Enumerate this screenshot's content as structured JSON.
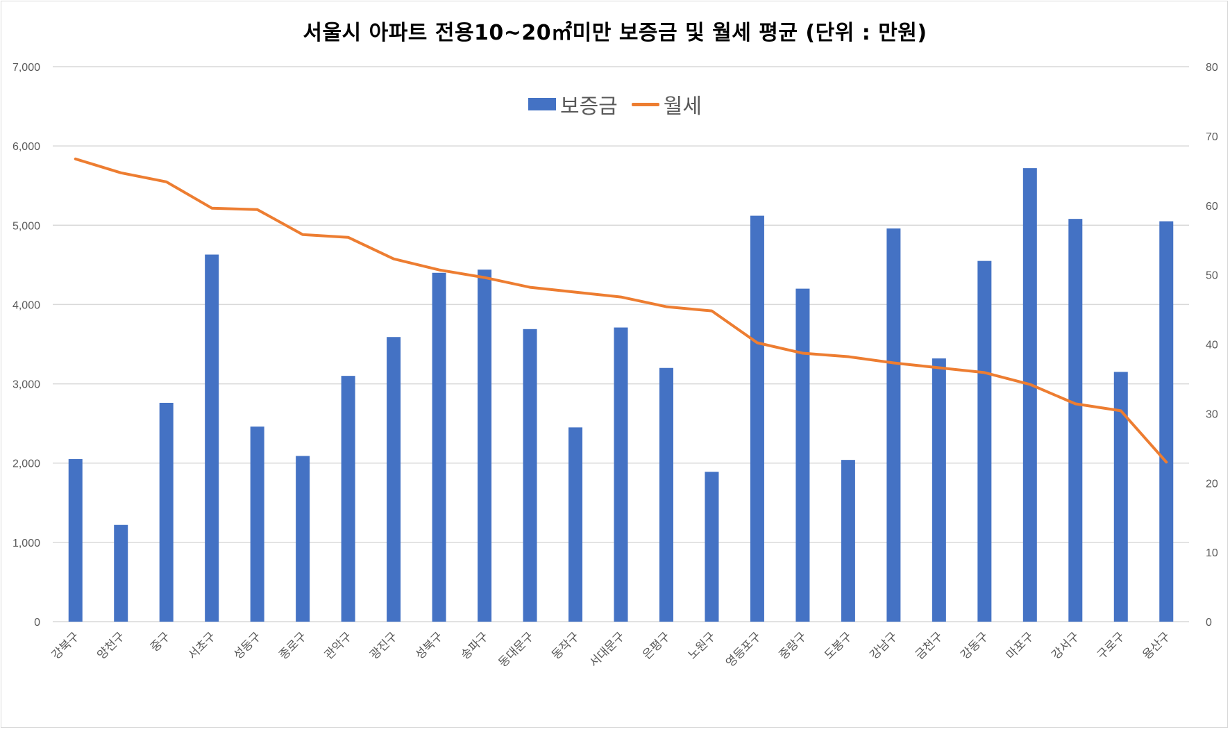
{
  "colors": {
    "bar": "#4472C4",
    "line": "#ED7D31",
    "grid": "#D9D9D9",
    "axis_text": "#595959"
  },
  "chart_data": {
    "type": "bar",
    "title": "서울시 아파트 전용10~20㎡미만 보증금 및 월세 평균 (단위 : 만원)",
    "categories": [
      "강북구",
      "양천구",
      "중구",
      "서초구",
      "성동구",
      "종로구",
      "관악구",
      "광진구",
      "성북구",
      "송파구",
      "동대문구",
      "동작구",
      "서대문구",
      "은평구",
      "노원구",
      "영등포구",
      "중랑구",
      "도봉구",
      "강남구",
      "금천구",
      "강동구",
      "마포구",
      "강서구",
      "구로구",
      "용산구"
    ],
    "series": [
      {
        "name": "보증금",
        "type": "bar",
        "axis": "left",
        "values": [
          2050,
          1220,
          2760,
          4630,
          2460,
          2090,
          3100,
          3590,
          4400,
          4440,
          3690,
          2450,
          3710,
          3200,
          1890,
          5120,
          4200,
          2040,
          4960,
          3320,
          4550,
          5720,
          5080,
          3150,
          5050
        ]
      },
      {
        "name": "월세",
        "type": "line",
        "axis": "right",
        "values": [
          66.7,
          64.7,
          63.4,
          59.6,
          59.4,
          55.8,
          55.4,
          52.3,
          50.7,
          49.6,
          48.2,
          47.5,
          46.8,
          45.4,
          44.8,
          40.2,
          38.7,
          38.2,
          37.3,
          36.6,
          35.9,
          34.2,
          31.4,
          30.4,
          23.0
        ]
      }
    ],
    "y_left": {
      "ylim": [
        0,
        7000
      ],
      "ticks": [
        "0",
        "1,000",
        "2,000",
        "3,000",
        "4,000",
        "5,000",
        "6,000",
        "7,000"
      ]
    },
    "y_right": {
      "ylim": [
        0,
        80
      ],
      "ticks": [
        "0",
        "10",
        "20",
        "30",
        "40",
        "50",
        "60",
        "70",
        "80"
      ]
    },
    "grid": true,
    "legend_position": "top"
  }
}
